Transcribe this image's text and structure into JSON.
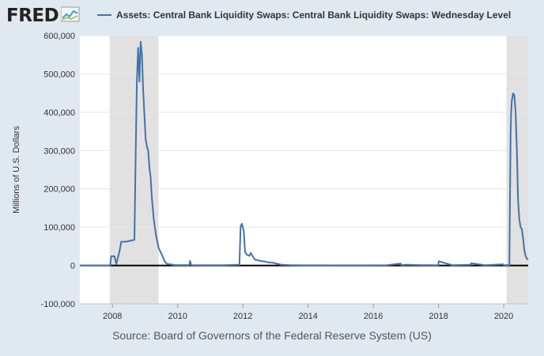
{
  "header": {
    "logo_text": "FRED",
    "logo_icon": "chart-trend-icon"
  },
  "source_text": "Source: Board of Governors of the Federal Reserve System (US)",
  "colors": {
    "background": "#e1e9f0",
    "plot_bg": "#ffffff",
    "series": "#4572a7",
    "recession": "#e1e1e1",
    "grid": "#e6e6e6",
    "zero_line": "#000000"
  },
  "chart_data": {
    "type": "line",
    "title": "",
    "xlabel": "",
    "ylabel": "Millions of U.S. Dollars",
    "xlim": [
      "2007-01-01",
      "2020-10-01"
    ],
    "ylim": [
      -100000,
      600000
    ],
    "y_ticks": [
      -100000,
      0,
      100000,
      200000,
      300000,
      400000,
      500000,
      600000
    ],
    "y_tick_labels": [
      "-100,000",
      "0",
      "100,000",
      "200,000",
      "300,000",
      "400,000",
      "500,000",
      "600,000"
    ],
    "x_ticks": [
      "2008-01-01",
      "2010-01-01",
      "2012-01-01",
      "2014-01-01",
      "2016-01-01",
      "2018-01-01",
      "2020-01-01"
    ],
    "x_tick_labels": [
      "2008",
      "2010",
      "2012",
      "2014",
      "2016",
      "2018",
      "2020"
    ],
    "grid": true,
    "legend_position": "top",
    "recessions": [
      [
        "2007-12-01",
        "2009-06-01"
      ],
      [
        "2020-02-01",
        "2020-10-01"
      ]
    ],
    "series": [
      {
        "name": "Assets: Central Bank Liquidity Swaps: Central Bank Liquidity Swaps: Wednesday Level",
        "x": [
          "2007-01-01",
          "2007-12-05",
          "2007-12-19",
          "2008-01-23",
          "2008-02-13",
          "2008-03-19",
          "2008-04-09",
          "2008-05-07",
          "2008-06-04",
          "2008-09-03",
          "2008-09-17",
          "2008-10-01",
          "2008-10-15",
          "2008-10-29",
          "2008-11-12",
          "2008-11-26",
          "2008-12-10",
          "2008-12-24",
          "2009-01-07",
          "2009-01-21",
          "2009-02-04",
          "2009-02-18",
          "2009-03-04",
          "2009-03-18",
          "2009-04-08",
          "2009-05-06",
          "2009-06-03",
          "2009-07-08",
          "2009-08-05",
          "2009-09-02",
          "2009-10-07",
          "2009-11-04",
          "2009-12-02",
          "2010-01-06",
          "2010-02-03",
          "2010-05-12",
          "2010-05-19",
          "2010-06-02",
          "2010-12-01",
          "2011-06-01",
          "2011-11-23",
          "2011-11-30",
          "2011-12-07",
          "2011-12-14",
          "2011-12-21",
          "2012-01-11",
          "2012-01-25",
          "2012-02-15",
          "2012-03-14",
          "2012-03-28",
          "2012-04-18",
          "2012-05-16",
          "2012-06-13",
          "2012-07-11",
          "2012-08-08",
          "2012-09-12",
          "2012-10-10",
          "2012-11-07",
          "2012-12-05",
          "2013-01-09",
          "2013-03-06",
          "2013-06-05",
          "2013-09-04",
          "2014-06-04",
          "2016-06-01",
          "2016-11-02",
          "2016-11-09",
          "2017-01-04",
          "2017-06-07",
          "2017-12-27",
          "2018-01-03",
          "2018-06-06",
          "2018-12-26",
          "2019-01-02",
          "2019-06-05",
          "2019-12-25",
          "2020-01-01",
          "2020-03-04",
          "2020-03-18",
          "2020-03-25",
          "2020-04-01",
          "2020-04-15",
          "2020-04-29",
          "2020-05-13",
          "2020-05-27",
          "2020-06-10",
          "2020-06-24",
          "2020-07-08",
          "2020-07-22",
          "2020-08-05",
          "2020-08-19",
          "2020-09-02",
          "2020-09-16",
          "2020-09-30"
        ],
        "y": [
          0,
          0,
          24000,
          24000,
          4000,
          36000,
          62000,
          62000,
          62000,
          67000,
          290000,
          480000,
          568000,
          480000,
          584000,
          550000,
          460000,
          395000,
          330000,
          310000,
          300000,
          255000,
          230000,
          175000,
          120000,
          75000,
          45000,
          28000,
          12000,
          4000,
          3000,
          2000,
          1000,
          1000,
          1000,
          1000,
          12000,
          1000,
          500,
          500,
          2000,
          50000,
          100000,
          106000,
          109000,
          90000,
          35000,
          28000,
          25000,
          33000,
          25000,
          15000,
          14000,
          12000,
          11000,
          10000,
          8000,
          8000,
          7000,
          5000,
          2000,
          1000,
          500,
          300,
          500,
          5000,
          1000,
          2000,
          1000,
          500,
          11000,
          500,
          2000,
          6000,
          500,
          3000,
          1000,
          1000,
          350000,
          400000,
          430000,
          449000,
          445000,
          400000,
          300000,
          170000,
          120000,
          100000,
          95000,
          70000,
          40000,
          25000,
          18000,
          15000
        ]
      }
    ]
  }
}
